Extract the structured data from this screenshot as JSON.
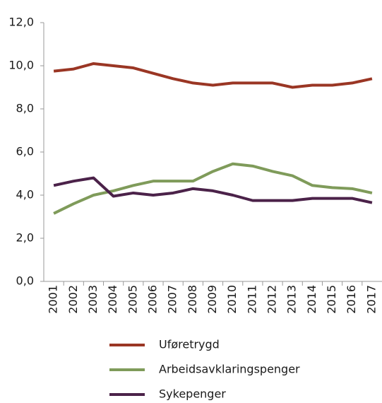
{
  "chart_data": {
    "type": "line",
    "categories": [
      "2001",
      "2002",
      "2003",
      "2004",
      "2005",
      "2006",
      "2007",
      "2008",
      "2009",
      "2010",
      "2011",
      "2012",
      "2013",
      "2014",
      "2015",
      "2016",
      "2017"
    ],
    "series": [
      {
        "name": "Uføretrygd",
        "color": "#9a3624",
        "values": [
          9.75,
          9.85,
          10.1,
          10.0,
          9.9,
          9.65,
          9.4,
          9.2,
          9.1,
          9.2,
          9.2,
          9.2,
          9.0,
          9.1,
          9.1,
          9.2,
          9.4
        ]
      },
      {
        "name": "Arbeidsavklaringspenger",
        "color": "#7f9b5a",
        "values": [
          3.15,
          3.6,
          4.0,
          4.2,
          4.45,
          4.65,
          4.65,
          4.65,
          5.1,
          5.45,
          5.35,
          5.1,
          4.9,
          4.45,
          4.35,
          4.3,
          4.1
        ]
      },
      {
        "name": "Sykepenger",
        "color": "#4b2249",
        "values": [
          4.45,
          4.65,
          4.8,
          3.95,
          4.1,
          4.0,
          4.1,
          4.3,
          4.2,
          4.0,
          3.75,
          3.75,
          3.75,
          3.85,
          3.85,
          3.85,
          3.65
        ]
      }
    ],
    "ylim": [
      0,
      12
    ],
    "yticks": [
      {
        "value": 0,
        "label": "0,0"
      },
      {
        "value": 2,
        "label": "2,0"
      },
      {
        "value": 4,
        "label": "4,0"
      },
      {
        "value": 6,
        "label": "6,0"
      },
      {
        "value": 8,
        "label": "8,0"
      },
      {
        "value": 10,
        "label": "10,0"
      },
      {
        "value": 12,
        "label": "12,0"
      }
    ],
    "grid": false,
    "legend": "bottom"
  }
}
